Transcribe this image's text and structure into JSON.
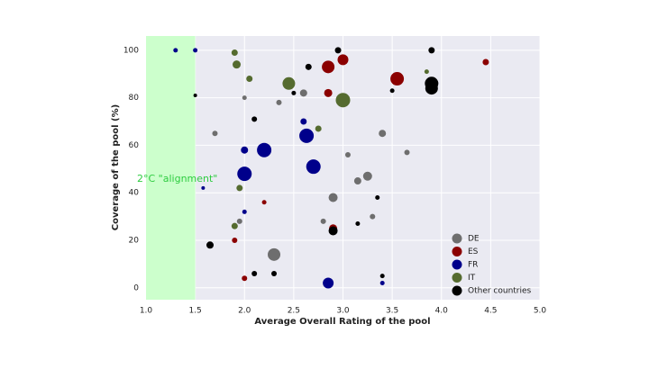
{
  "chart_data": {
    "type": "scatter",
    "x_label": "Average Overall Rating of the pool",
    "y_label": "Coverage of the pool (%)",
    "annotation": "2°C \"alignment\"",
    "band": {
      "xlim": [
        1.0,
        1.5
      ],
      "color": "#ccffcc"
    },
    "xlim": [
      1.0,
      5.0
    ],
    "ylim": [
      -5,
      106
    ],
    "xticks": [
      {
        "value": 1,
        "label": "1.0"
      },
      {
        "value": 1.5,
        "label": "1.5"
      },
      {
        "value": 2,
        "label": "2.0"
      },
      {
        "value": 2.5,
        "label": "2.5"
      },
      {
        "value": 3,
        "label": "3.0"
      },
      {
        "value": 3.5,
        "label": "3.5"
      },
      {
        "value": 4,
        "label": "4.0"
      },
      {
        "value": 4.5,
        "label": "4.5"
      },
      {
        "value": 5,
        "label": "5.0"
      }
    ],
    "yticks": [
      0,
      20,
      40,
      60,
      80,
      100
    ],
    "grid": true,
    "legend": "lower right",
    "series": [
      {
        "name": "DE",
        "color": "#6e6e6e",
        "x": [
          2.3,
          2.9,
          3.15,
          3.25,
          3.4,
          2.6,
          1.7,
          2.35,
          3.65,
          1.95,
          2.8,
          3.3,
          2.0,
          3.05
        ],
        "values": [
          14,
          38,
          45,
          47,
          65,
          82,
          65,
          78,
          57,
          28,
          28,
          30,
          80,
          56
        ],
        "sizes": [
          7,
          5,
          4,
          5,
          4,
          4,
          3,
          3,
          3,
          3,
          3,
          3,
          2.5,
          3
        ]
      },
      {
        "name": "ES",
        "color": "#8b0000",
        "x": [
          2.85,
          3.0,
          3.55,
          4.45,
          2.85,
          2.9,
          2.0,
          1.9,
          2.2
        ],
        "values": [
          93,
          96,
          88,
          95,
          82,
          25,
          4,
          20,
          36
        ],
        "sizes": [
          7,
          6,
          7.5,
          3.5,
          4.5,
          4.5,
          3,
          3,
          2.5
        ]
      },
      {
        "name": "FR",
        "color": "#00008b",
        "x": [
          2.63,
          2.7,
          2.2,
          2.0,
          2.85,
          2.0,
          2.6,
          1.3,
          1.5,
          1.58,
          2.0,
          3.4
        ],
        "values": [
          64,
          51,
          58,
          48,
          2,
          58,
          70,
          100,
          100,
          42,
          32,
          2
        ],
        "sizes": [
          8,
          8,
          8,
          8,
          6,
          4,
          3.5,
          2.5,
          2.5,
          2,
          2.5,
          2.5
        ]
      },
      {
        "name": "IT",
        "color": "#556b2f",
        "x": [
          2.45,
          3.0,
          1.92,
          1.9,
          2.05,
          1.9,
          2.75,
          3.85,
          1.95
        ],
        "values": [
          86,
          79,
          94,
          99,
          88,
          26,
          67,
          91,
          42
        ],
        "sizes": [
          7,
          8,
          4.5,
          3.5,
          3.5,
          3.5,
          3.5,
          2.5,
          3.5
        ]
      },
      {
        "name": "Other countries",
        "color": "#000000",
        "x": [
          3.9,
          3.9,
          2.9,
          1.65,
          2.95,
          3.9,
          2.65,
          2.1,
          2.3,
          2.1,
          3.15,
          3.35,
          3.4,
          1.5,
          2.5,
          3.5
        ],
        "values": [
          86,
          84,
          24,
          18,
          100,
          100,
          93,
          71,
          6,
          6,
          27,
          38,
          5,
          81,
          82,
          83
        ],
        "sizes": [
          7.5,
          7,
          5,
          4,
          3.5,
          3.5,
          3.5,
          3,
          3,
          3,
          2.5,
          2.5,
          2.5,
          2,
          2.5,
          2.5
        ]
      }
    ]
  }
}
